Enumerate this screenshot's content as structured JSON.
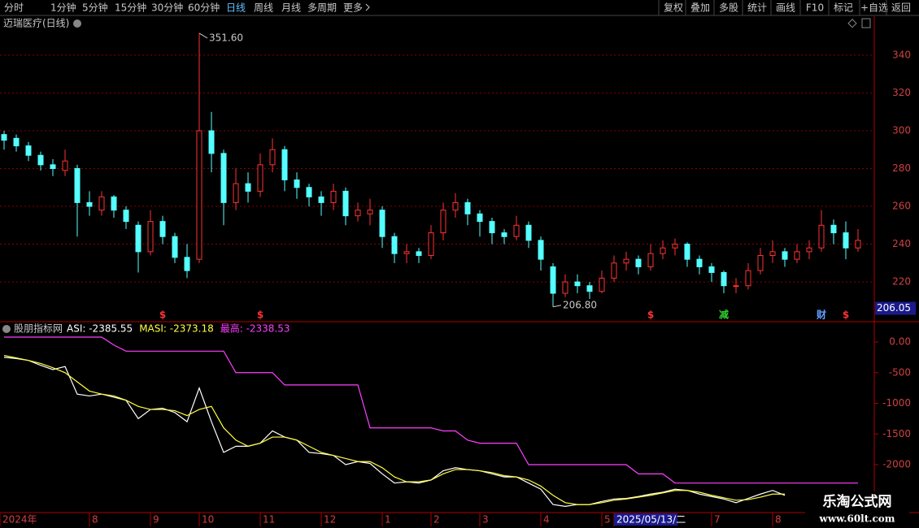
{
  "toolbar": {
    "left": [
      "分时",
      "1分钟",
      "5分钟",
      "15分钟",
      "30分钟",
      "60分钟",
      "日线",
      "周线",
      "月线",
      "多周期",
      "更多"
    ],
    "active": 6,
    "right": [
      "复权",
      "叠加",
      "多股",
      "统计",
      "画线",
      "F10",
      "标记",
      "+自选",
      "返回"
    ]
  },
  "watermark": {
    "title": "乐淘公式网",
    "url": "www.60lt.com"
  },
  "chart_data": [
    {
      "type": "candlestick",
      "title": "迈瑞医疗(日线)",
      "up_color": "#ff3232",
      "down_color": "#54ffff",
      "ylim": [
        199.4,
        360.6
      ],
      "yticks": [
        220,
        240,
        260,
        280,
        300,
        320,
        340
      ],
      "grid": true,
      "candles": [
        [
          298,
          300,
          290,
          295
        ],
        [
          296,
          298,
          289,
          292
        ],
        [
          292,
          294,
          284,
          287
        ],
        [
          287,
          289,
          279,
          282
        ],
        [
          282,
          285,
          276,
          280
        ],
        [
          279,
          290,
          276,
          284
        ],
        [
          280,
          282,
          244,
          262
        ],
        [
          262,
          268,
          255,
          260
        ],
        [
          258,
          268,
          255,
          265
        ],
        [
          265,
          266,
          254,
          258
        ],
        [
          258,
          260,
          248,
          252
        ],
        [
          250,
          252,
          225,
          236
        ],
        [
          236,
          258,
          234,
          252
        ],
        [
          252,
          255,
          240,
          244
        ],
        [
          244,
          246,
          230,
          233
        ],
        [
          233,
          240,
          222,
          226
        ],
        [
          232,
          351.6,
          230,
          300
        ],
        [
          300,
          310,
          278,
          288
        ],
        [
          288,
          290,
          250,
          262
        ],
        [
          262,
          280,
          258,
          272
        ],
        [
          272,
          278,
          262,
          268
        ],
        [
          268,
          288,
          265,
          282
        ],
        [
          282,
          296,
          278,
          290
        ],
        [
          290,
          292,
          268,
          274
        ],
        [
          274,
          278,
          264,
          270
        ],
        [
          270,
          272,
          260,
          265
        ],
        [
          265,
          268,
          255,
          262
        ],
        [
          262,
          272,
          258,
          268
        ],
        [
          268,
          270,
          250,
          255
        ],
        [
          255,
          262,
          252,
          258
        ],
        [
          256,
          264,
          250,
          258
        ],
        [
          258,
          260,
          238,
          244
        ],
        [
          244,
          246,
          230,
          235
        ],
        [
          235,
          240,
          230,
          236
        ],
        [
          236,
          238,
          230,
          234
        ],
        [
          234,
          250,
          232,
          246
        ],
        [
          246,
          262,
          242,
          258
        ],
        [
          258,
          267,
          254,
          262
        ],
        [
          262,
          264,
          250,
          256
        ],
        [
          256,
          258,
          244,
          252
        ],
        [
          252,
          254,
          240,
          246
        ],
        [
          246,
          248,
          240,
          244
        ],
        [
          244,
          255,
          242,
          250
        ],
        [
          250,
          252,
          238,
          242
        ],
        [
          242,
          244,
          226,
          232
        ],
        [
          228,
          230,
          206.8,
          214
        ],
        [
          214,
          224,
          212,
          220
        ],
        [
          220,
          224,
          214,
          218
        ],
        [
          218,
          220,
          211,
          215
        ],
        [
          215,
          226,
          214,
          222
        ],
        [
          222,
          234,
          220,
          230
        ],
        [
          230,
          236,
          226,
          232
        ],
        [
          232,
          234,
          224,
          228
        ],
        [
          228,
          240,
          226,
          235
        ],
        [
          235,
          242,
          232,
          238
        ],
        [
          238,
          243,
          234,
          240
        ],
        [
          240,
          241,
          228,
          232
        ],
        [
          232,
          234,
          224,
          228
        ],
        [
          228,
          230,
          220,
          225
        ],
        [
          225,
          226,
          214,
          218
        ],
        [
          218,
          222,
          214,
          218
        ],
        [
          218,
          230,
          216,
          226
        ],
        [
          226,
          238,
          224,
          234
        ],
        [
          234,
          242,
          230,
          236
        ],
        [
          236,
          238,
          228,
          232
        ],
        [
          232,
          240,
          230,
          236
        ],
        [
          236,
          242,
          232,
          238
        ],
        [
          238,
          258,
          236,
          250
        ],
        [
          250,
          253,
          240,
          246
        ],
        [
          246,
          252,
          232,
          238
        ],
        [
          238,
          248,
          236,
          242
        ]
      ],
      "annotations": [
        {
          "index": 16,
          "value": 351.6,
          "label": "351.60"
        },
        {
          "index": 45,
          "value": 206.8,
          "label": "206.80"
        }
      ],
      "current_price": 206.05,
      "markers": [
        {
          "index": 13,
          "text": "$",
          "color": "#ff3232"
        },
        {
          "index": 21,
          "text": "$",
          "color": "#ff3232"
        },
        {
          "index": 53,
          "text": "$",
          "color": "#ff3232"
        },
        {
          "index": 59,
          "text": "减",
          "color": "#30d030"
        },
        {
          "index": 67,
          "text": "财",
          "color": "#60a0ff"
        },
        {
          "index": 69,
          "text": "$",
          "color": "#ff3232"
        }
      ]
    },
    {
      "type": "line",
      "title": "股朋指标网",
      "ylim": [
        -2768,
        318
      ],
      "yticks": [
        {
          "value": 0,
          "label": "0.00"
        },
        -500,
        -1000,
        -1500,
        -2000
      ],
      "grid": false,
      "xticks": [
        {
          "value": 0,
          "label": "2024年"
        },
        {
          "value": 7,
          "label": "8"
        },
        {
          "value": 12,
          "label": "9"
        },
        {
          "value": 16,
          "label": "10"
        },
        {
          "value": 21,
          "label": "11"
        },
        {
          "value": 26,
          "label": "12"
        },
        {
          "value": 31,
          "label": "1"
        },
        {
          "value": 35,
          "label": "2"
        },
        {
          "value": 39,
          "label": "3"
        },
        {
          "value": 44,
          "label": "4"
        },
        {
          "value": 49,
          "label": "5"
        },
        {
          "value": 50,
          "label": "2025/05/13/二"
        },
        {
          "value": 58,
          "label": "7"
        },
        {
          "value": 63,
          "label": "8"
        }
      ],
      "series": [
        {
          "name": "ASI: -2385.55",
          "color": "#ffffff",
          "values": [
            -250,
            -270,
            -300,
            -380,
            -450,
            -400,
            -850,
            -880,
            -850,
            -900,
            -950,
            -1250,
            -1100,
            -1080,
            -1150,
            -1300,
            -750,
            -1300,
            -1800,
            -1700,
            -1700,
            -1650,
            -1450,
            -1550,
            -1600,
            -1800,
            -1820,
            -1850,
            -2000,
            -1950,
            -1980,
            -2150,
            -2300,
            -2280,
            -2300,
            -2250,
            -2100,
            -2050,
            -2080,
            -2100,
            -2150,
            -2200,
            -2200,
            -2300,
            -2400,
            -2650,
            -2680,
            -2650,
            -2650,
            -2600,
            -2560,
            -2550,
            -2520,
            -2480,
            -2450,
            -2400,
            -2420,
            -2480,
            -2520,
            -2560,
            -2620,
            -2550,
            -2480,
            -2420,
            -2500,
            null,
            null,
            null,
            null,
            null,
            null
          ]
        },
        {
          "name": "MASI: -2373.18",
          "color": "#ffff40",
          "values": [
            -220,
            -260,
            -300,
            -350,
            -420,
            -500,
            -650,
            -800,
            -850,
            -880,
            -950,
            -1050,
            -1100,
            -1100,
            -1120,
            -1200,
            -1100,
            -1050,
            -1400,
            -1600,
            -1700,
            -1650,
            -1550,
            -1550,
            -1600,
            -1700,
            -1800,
            -1850,
            -1900,
            -1950,
            -1950,
            -2050,
            -2200,
            -2280,
            -2280,
            -2250,
            -2150,
            -2080,
            -2080,
            -2100,
            -2130,
            -2180,
            -2200,
            -2250,
            -2350,
            -2500,
            -2620,
            -2650,
            -2650,
            -2620,
            -2580,
            -2560,
            -2530,
            -2500,
            -2460,
            -2420,
            -2420,
            -2450,
            -2500,
            -2540,
            -2580,
            -2570,
            -2530,
            -2480,
            -2480,
            null,
            null,
            null,
            null,
            null,
            null
          ]
        },
        {
          "name": "最高: -2338.53",
          "color": "#ff40ff",
          "values": [
            80,
            80,
            80,
            80,
            80,
            80,
            80,
            80,
            80,
            -50,
            -150,
            -150,
            -150,
            -150,
            -150,
            -150,
            -150,
            -150,
            -150,
            -500,
            -500,
            -500,
            -500,
            -700,
            -700,
            -700,
            -700,
            -700,
            -700,
            -700,
            -1400,
            -1400,
            -1400,
            -1400,
            -1400,
            -1400,
            -1450,
            -1450,
            -1600,
            -1650,
            -1650,
            -1650,
            -1650,
            -2000,
            -2000,
            -2000,
            -2000,
            -2000,
            -2000,
            -2000,
            -2000,
            -2000,
            -2150,
            -2150,
            -2150,
            -2300,
            -2300,
            -2300,
            -2300,
            -2300,
            -2300,
            -2300,
            -2300,
            -2300,
            -2300,
            -2300,
            -2300,
            -2300,
            -2300,
            -2300,
            -2300
          ]
        }
      ]
    }
  ]
}
